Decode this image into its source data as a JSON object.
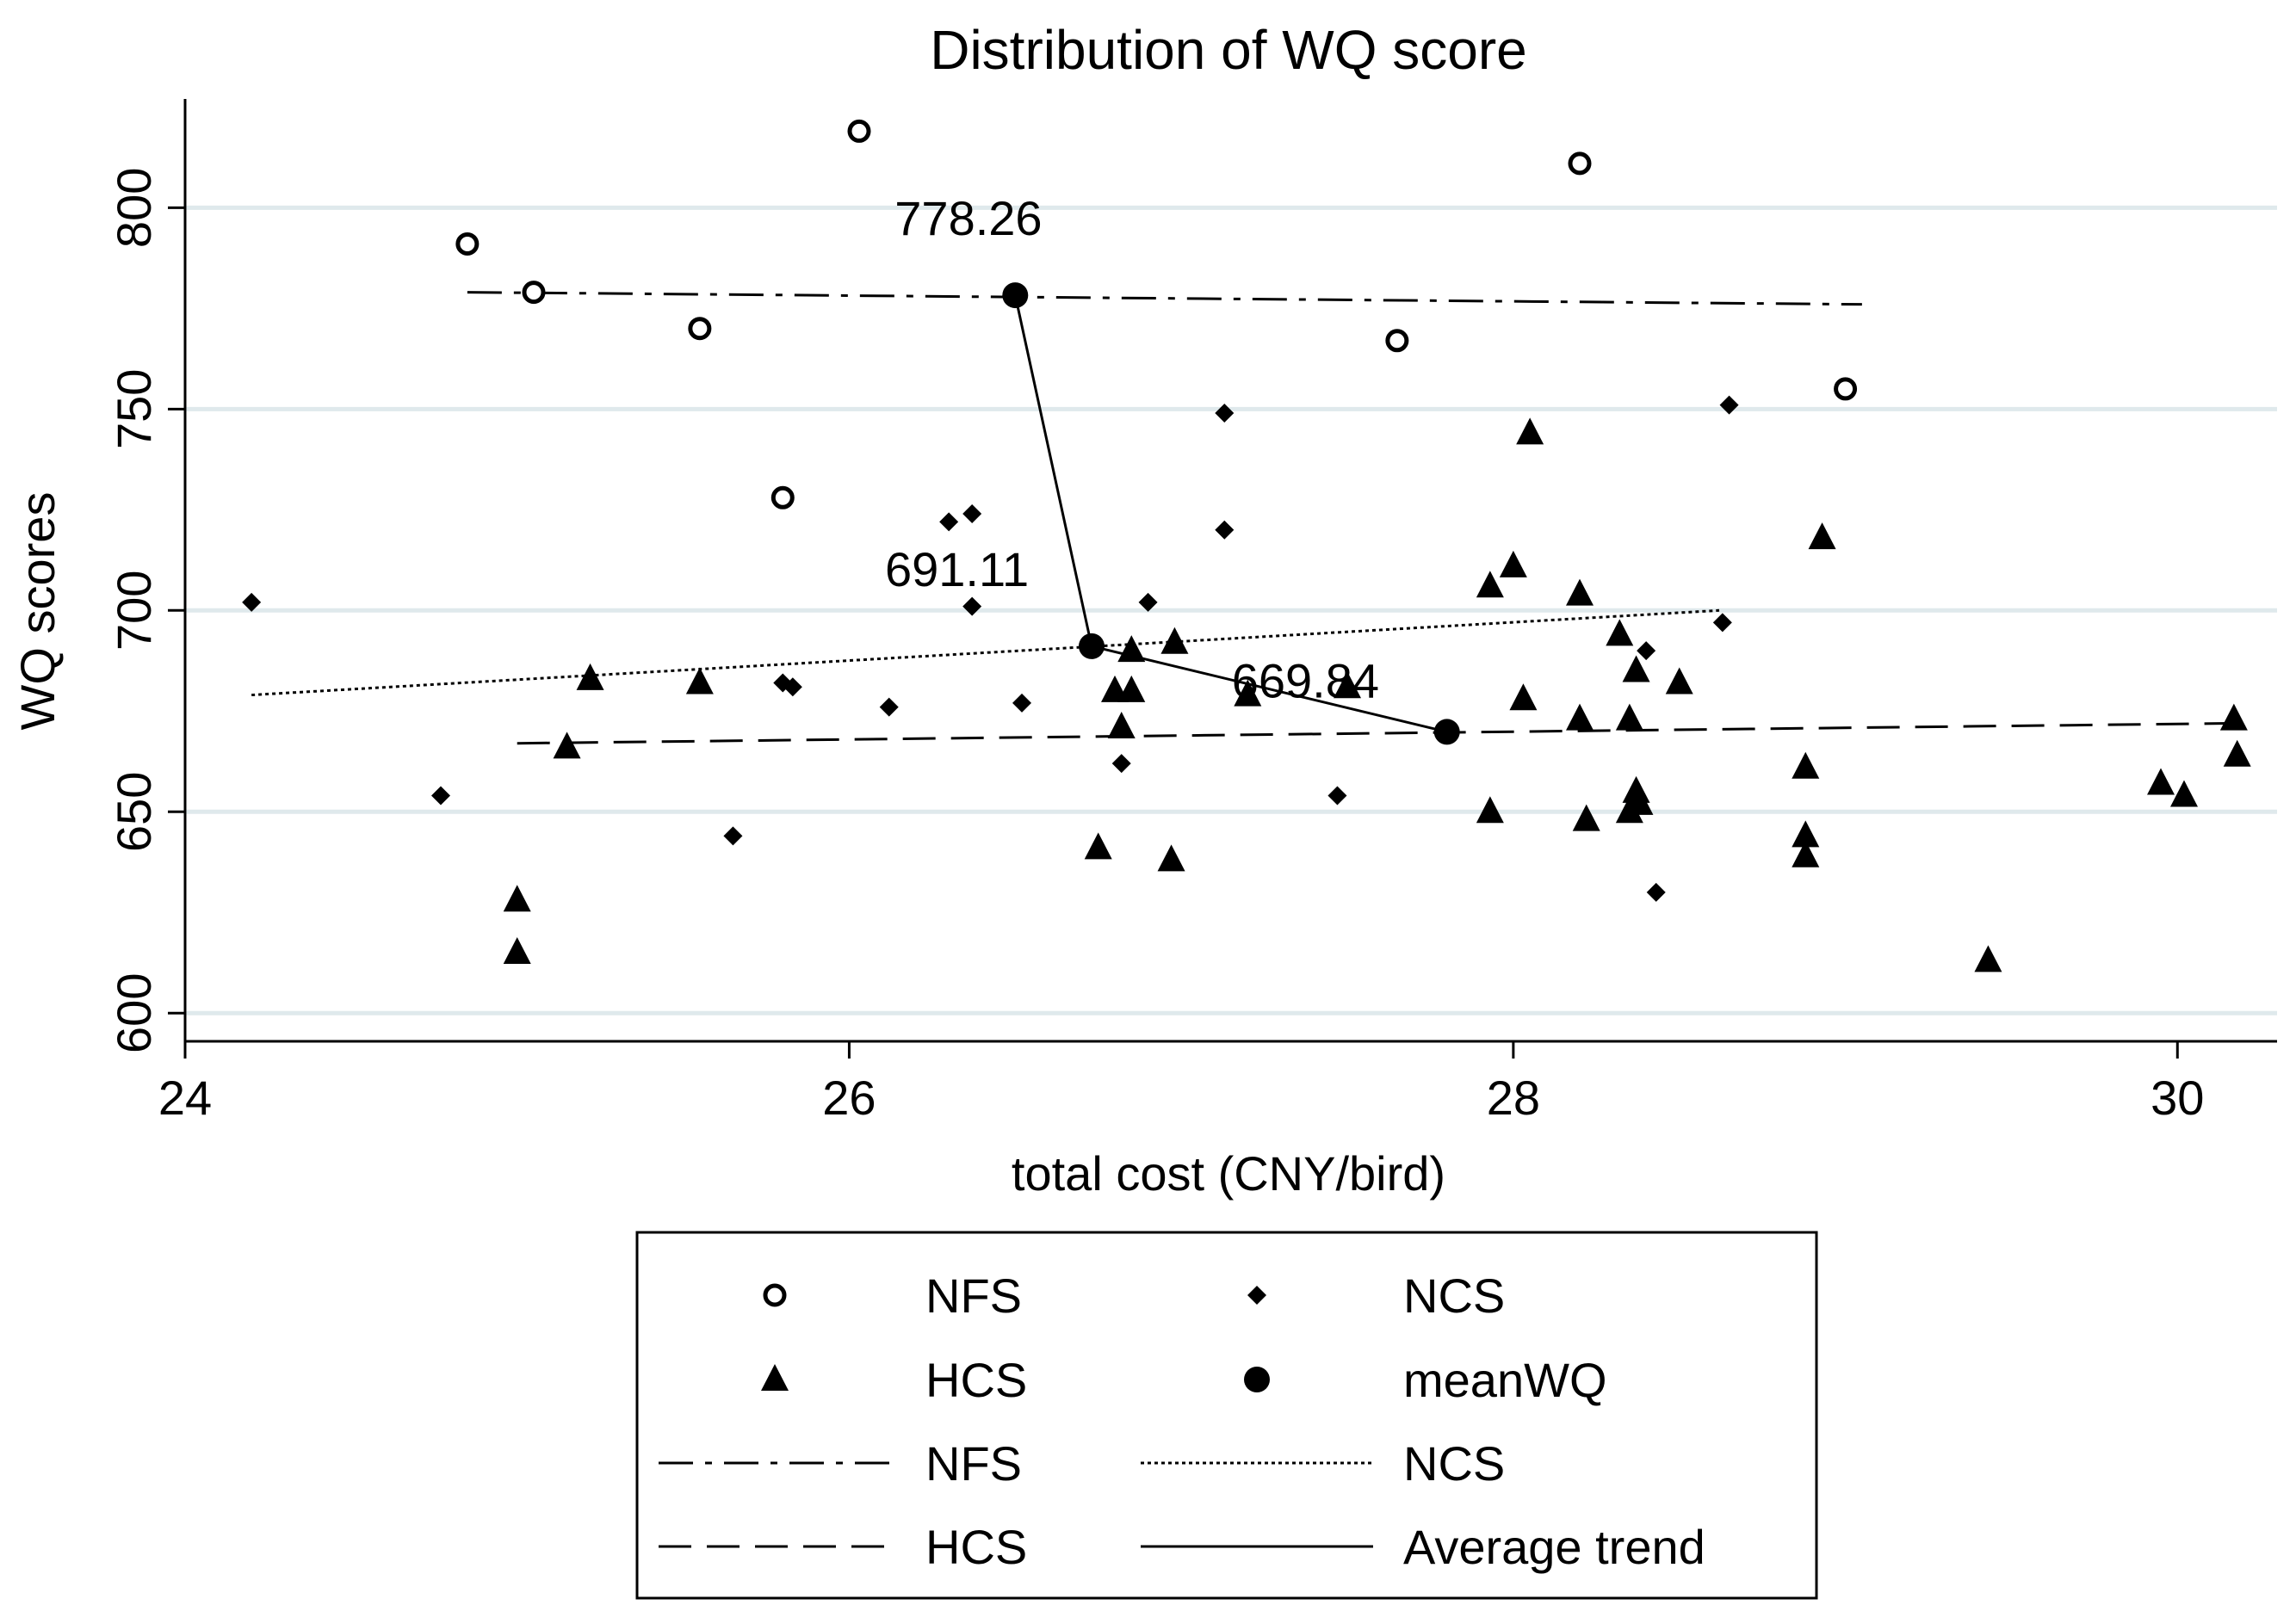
{
  "chart_data": {
    "type": "scatter",
    "title": "Distribution of WQ score",
    "xlabel": "total cost (CNY/bird)",
    "ylabel": "WQ scores",
    "xlim": [
      24,
      30.3
    ],
    "ylim": [
      593,
      827
    ],
    "xticks": [
      24,
      26,
      28,
      30
    ],
    "yticks": [
      600,
      650,
      700,
      750,
      800
    ],
    "grid": "horizontal",
    "legend_position": "bottom",
    "colors": {
      "ink": "#000000",
      "grid": "#dfe9ec",
      "background": "#ffffff"
    },
    "series": [
      {
        "name": "NFS",
        "kind": "points",
        "marker": "hollow-circle",
        "points": [
          [
            24.85,
            791
          ],
          [
            25.05,
            779
          ],
          [
            25.55,
            770
          ],
          [
            25.8,
            728
          ],
          [
            26.03,
            819
          ],
          [
            27.65,
            767
          ],
          [
            28.2,
            811
          ],
          [
            29.0,
            755
          ]
        ]
      },
      {
        "name": "NCS",
        "kind": "points",
        "marker": "diamond",
        "points": [
          [
            24.2,
            702
          ],
          [
            24.77,
            654
          ],
          [
            25.65,
            644
          ],
          [
            25.8,
            682
          ],
          [
            25.83,
            681
          ],
          [
            26.12,
            676
          ],
          [
            26.3,
            722
          ],
          [
            26.37,
            724
          ],
          [
            26.37,
            701
          ],
          [
            26.52,
            677
          ],
          [
            26.82,
            662
          ],
          [
            26.9,
            702
          ],
          [
            27.13,
            749
          ],
          [
            27.13,
            720
          ],
          [
            27.47,
            654
          ],
          [
            28.4,
            690
          ],
          [
            28.43,
            630
          ],
          [
            28.63,
            697
          ],
          [
            28.65,
            751
          ]
        ]
      },
      {
        "name": "HCS",
        "kind": "points",
        "marker": "filled-triangle",
        "points": [
          [
            25.0,
            628
          ],
          [
            25.0,
            615
          ],
          [
            25.15,
            666
          ],
          [
            25.22,
            683
          ],
          [
            25.55,
            682
          ],
          [
            26.75,
            641
          ],
          [
            26.8,
            680
          ],
          [
            26.82,
            671
          ],
          [
            26.85,
            690
          ],
          [
            26.85,
            680
          ],
          [
            26.97,
            638
          ],
          [
            26.98,
            692
          ],
          [
            27.2,
            679
          ],
          [
            27.5,
            681
          ],
          [
            27.93,
            706
          ],
          [
            27.93,
            650
          ],
          [
            28.0,
            711
          ],
          [
            28.03,
            678
          ],
          [
            28.05,
            744
          ],
          [
            28.2,
            704
          ],
          [
            28.2,
            673
          ],
          [
            28.22,
            648
          ],
          [
            28.32,
            694
          ],
          [
            28.35,
            650
          ],
          [
            28.35,
            673
          ],
          [
            28.37,
            685
          ],
          [
            28.37,
            655
          ],
          [
            28.38,
            652
          ],
          [
            28.5,
            682
          ],
          [
            28.88,
            661
          ],
          [
            28.88,
            644
          ],
          [
            28.88,
            639
          ],
          [
            28.93,
            718
          ],
          [
            29.43,
            613
          ],
          [
            29.95,
            657
          ],
          [
            30.02,
            654
          ],
          [
            30.17,
            673
          ],
          [
            30.18,
            664
          ]
        ]
      },
      {
        "name": "meanWQ",
        "kind": "points",
        "marker": "filled-circle",
        "points": [
          [
            26.5,
            778.26
          ],
          [
            26.73,
            691.11
          ],
          [
            27.8,
            669.84
          ]
        ],
        "labels": [
          "778.26",
          "691.11",
          "669.84"
        ]
      },
      {
        "name": "NFS",
        "kind": "line",
        "dash": "dash-dot",
        "points": [
          [
            24.85,
            779
          ],
          [
            29.05,
            776
          ]
        ]
      },
      {
        "name": "NCS",
        "kind": "line",
        "dash": "dotted",
        "points": [
          [
            24.2,
            679
          ],
          [
            28.62,
            700
          ]
        ]
      },
      {
        "name": "HCS",
        "kind": "line",
        "dash": "dashed",
        "points": [
          [
            25.0,
            667
          ],
          [
            30.2,
            672
          ]
        ]
      },
      {
        "name": "Average trend",
        "kind": "line",
        "dash": "solid",
        "points": [
          [
            26.5,
            778.26
          ],
          [
            26.73,
            691.11
          ],
          [
            27.8,
            669.84
          ]
        ]
      }
    ],
    "legend": [
      {
        "label": "NFS",
        "symbol": "hollow-circle"
      },
      {
        "label": "NCS",
        "symbol": "diamond"
      },
      {
        "label": "HCS",
        "symbol": "filled-triangle"
      },
      {
        "label": "meanWQ",
        "symbol": "filled-circle"
      },
      {
        "label": "NFS",
        "symbol": "dash-dot"
      },
      {
        "label": "NCS",
        "symbol": "dotted"
      },
      {
        "label": "HCS",
        "symbol": "dashed"
      },
      {
        "label": "Average trend",
        "symbol": "solid"
      }
    ]
  }
}
